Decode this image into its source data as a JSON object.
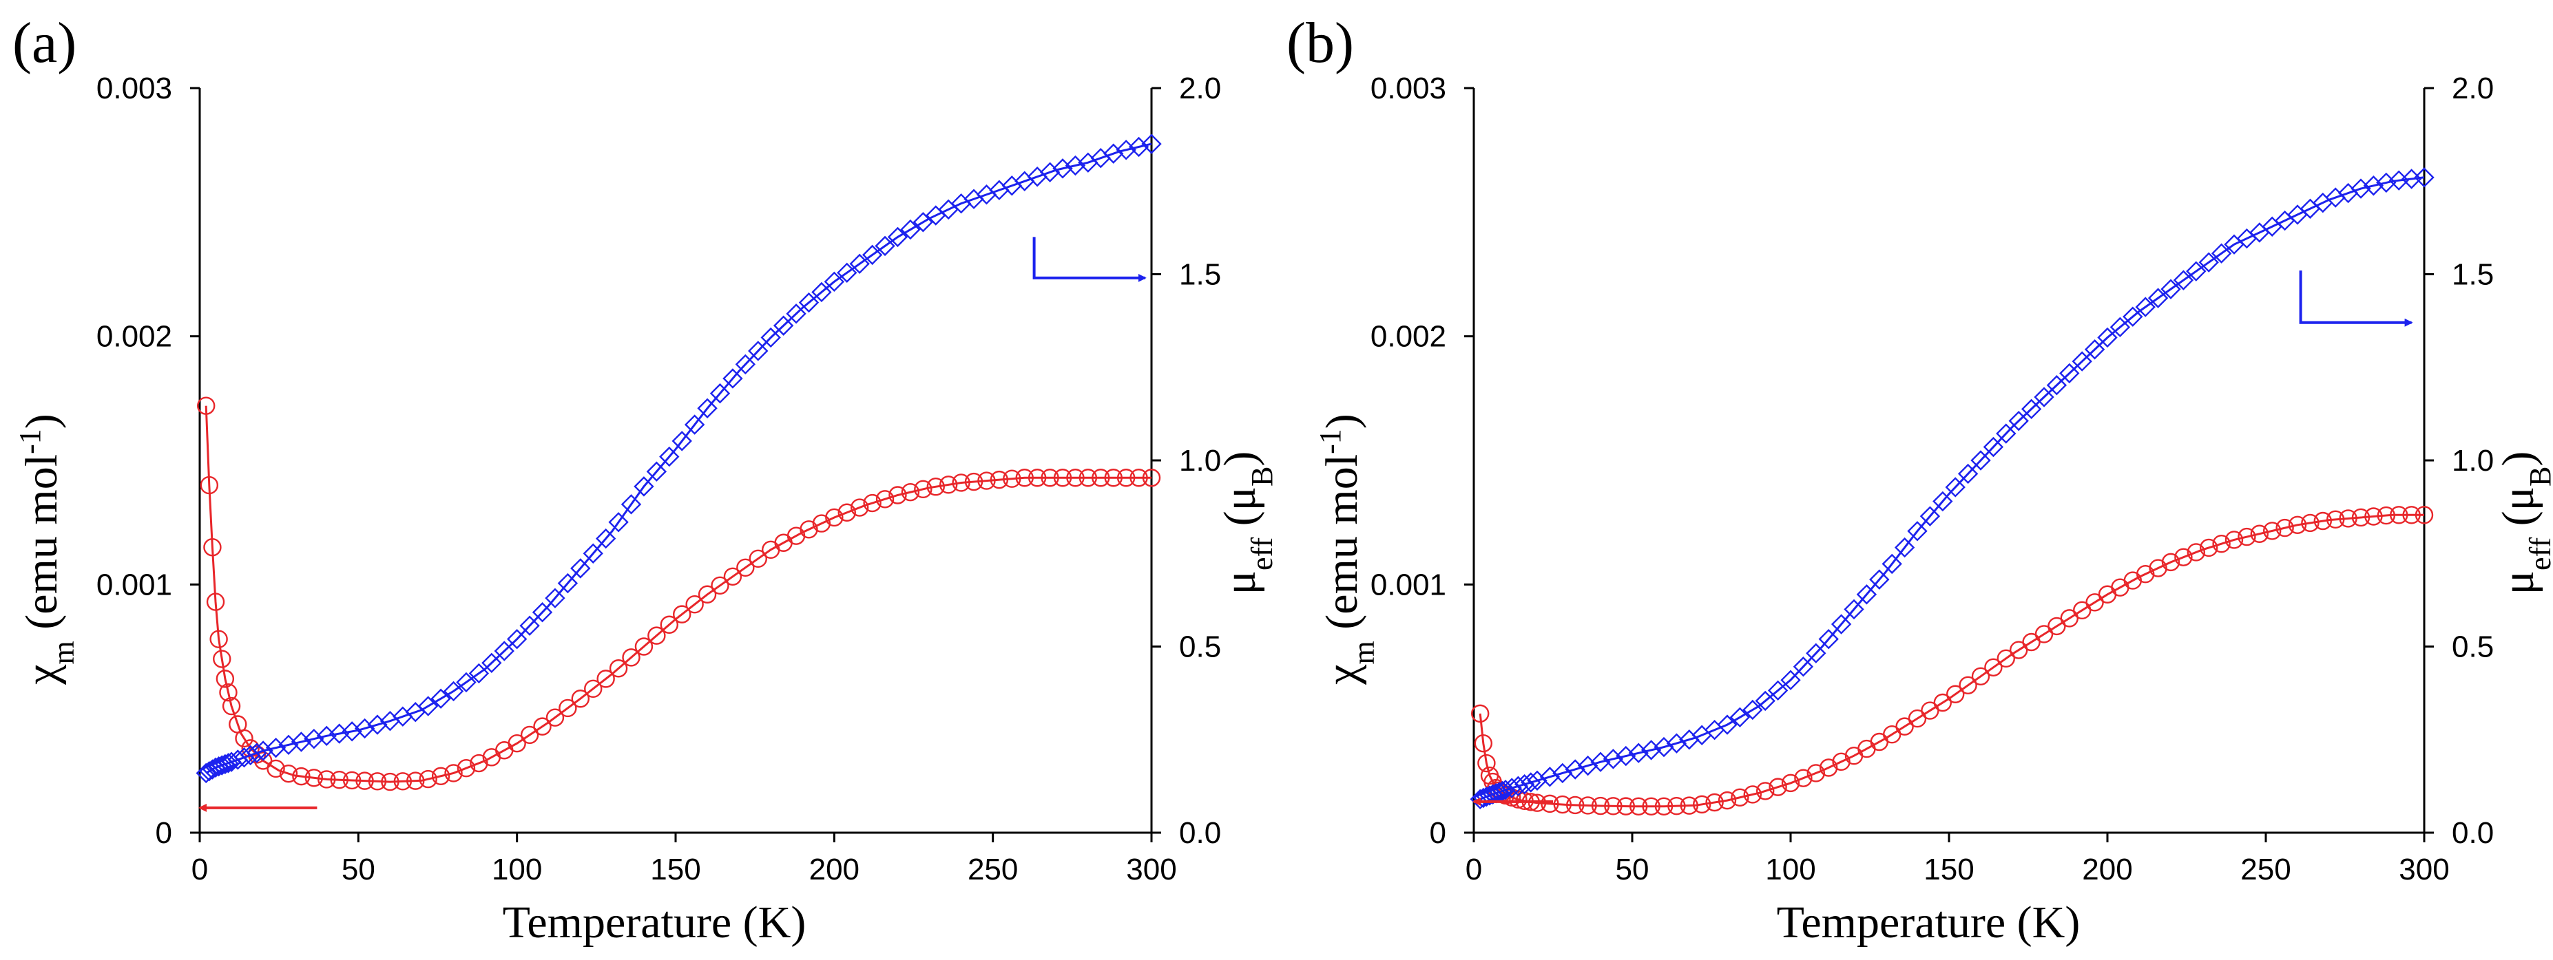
{
  "chart_data": [
    {
      "type": "scatter",
      "panel_label": "(a)",
      "xlabel": "Temperature (K)",
      "ylabel_left": {
        "symbol": "χ",
        "sub": "m",
        "rest": " (emu mol",
        "sup": "-1",
        "close": ")"
      },
      "ylabel_right": {
        "symbol": "μ",
        "sub": "eff",
        "rest": " (μ",
        "sub2": "B",
        "close": ")"
      },
      "xlim": [
        0,
        300
      ],
      "ylim_left": [
        0,
        0.003
      ],
      "ylim_right": [
        0,
        2.0
      ],
      "x_ticks": [
        "0",
        "50",
        "100",
        "150",
        "200",
        "250",
        "300"
      ],
      "y_left_ticks": [
        "0",
        "0.001",
        "0.002",
        "0.003"
      ],
      "y_right_ticks": [
        "0.0",
        "0.5",
        "1.0",
        "1.5",
        "2.0"
      ],
      "series": [
        {
          "name": "chi_m",
          "axis": "left",
          "marker": "circle",
          "color": "#e8262a",
          "fit_points": [
            [
              2,
              0.00172
            ],
            [
              3,
              0.0014
            ],
            [
              4,
              0.00115
            ],
            [
              5,
              0.00093
            ],
            [
              6,
              0.00078
            ],
            [
              8,
              0.00062
            ],
            [
              10,
              0.00051
            ],
            [
              13,
              0.0004
            ],
            [
              16,
              0.00034
            ],
            [
              20,
              0.00029
            ],
            [
              25,
              0.00025
            ],
            [
              30,
              0.00023
            ],
            [
              40,
              0.000215
            ],
            [
              50,
              0.00021
            ],
            [
              60,
              0.000205
            ],
            [
              70,
              0.00021
            ],
            [
              80,
              0.00024
            ],
            [
              90,
              0.00029
            ],
            [
              100,
              0.00036
            ],
            [
              110,
              0.000445
            ],
            [
              120,
              0.00054
            ],
            [
              130,
              0.00064
            ],
            [
              140,
              0.00075
            ],
            [
              150,
              0.00086
            ],
            [
              160,
              0.00096
            ],
            [
              170,
              0.00105
            ],
            [
              180,
              0.00114
            ],
            [
              190,
              0.00121
            ],
            [
              200,
              0.00127
            ],
            [
              210,
              0.00132
            ],
            [
              220,
              0.00136
            ],
            [
              230,
              0.00139
            ],
            [
              240,
              0.00141
            ],
            [
              250,
              0.00142
            ],
            [
              260,
              0.00143
            ],
            [
              270,
              0.00143
            ],
            [
              280,
              0.00143
            ],
            [
              290,
              0.00143
            ],
            [
              300,
              0.00143
            ]
          ]
        },
        {
          "name": "mu_eff",
          "axis": "right",
          "marker": "diamond",
          "color": "#1c22ee",
          "fit_points": [
            [
              2,
              0.16
            ],
            [
              5,
              0.175
            ],
            [
              10,
              0.19
            ],
            [
              20,
              0.22
            ],
            [
              30,
              0.24
            ],
            [
              40,
              0.26
            ],
            [
              50,
              0.275
            ],
            [
              60,
              0.3
            ],
            [
              70,
              0.33
            ],
            [
              80,
              0.38
            ],
            [
              90,
              0.44
            ],
            [
              100,
              0.52
            ],
            [
              110,
              0.61
            ],
            [
              120,
              0.71
            ],
            [
              130,
              0.81
            ],
            [
              140,
              0.93
            ],
            [
              150,
              1.03
            ],
            [
              160,
              1.14
            ],
            [
              170,
              1.24
            ],
            [
              180,
              1.33
            ],
            [
              190,
              1.41
            ],
            [
              200,
              1.48
            ],
            [
              210,
              1.54
            ],
            [
              220,
              1.6
            ],
            [
              230,
              1.65
            ],
            [
              240,
              1.69
            ],
            [
              250,
              1.72
            ],
            [
              260,
              1.75
            ],
            [
              270,
              1.78
            ],
            [
              280,
              1.8
            ],
            [
              290,
              1.83
            ],
            [
              300,
              1.85
            ]
          ]
        }
      ],
      "annotations": [
        {
          "type": "arrow",
          "points": [
            [
              37,
              0.0001
            ],
            [
              0,
              0.0001
            ]
          ],
          "unit": "left",
          "color": "#e8262a"
        },
        {
          "type": "arrow",
          "points": [
            [
              263,
              1.6
            ],
            [
              263,
              1.49
            ],
            [
              298,
              1.49
            ]
          ],
          "unit": "right",
          "color": "#1c22ee"
        }
      ]
    },
    {
      "type": "scatter",
      "panel_label": "(b)",
      "xlabel": "Temperature (K)",
      "ylabel_left": {
        "symbol": "χ",
        "sub": "m",
        "rest": " (emu mol",
        "sup": "-1",
        "close": ")"
      },
      "ylabel_right": {
        "symbol": "μ",
        "sub": "eff",
        "rest": " (μ",
        "sub2": "B",
        "close": ")"
      },
      "xlim": [
        0,
        300
      ],
      "ylim_left": [
        0,
        0.003
      ],
      "ylim_right": [
        0,
        2.0
      ],
      "x_ticks": [
        "0",
        "50",
        "100",
        "150",
        "200",
        "250",
        "300"
      ],
      "y_left_ticks": [
        "0",
        "0.001",
        "0.002",
        "0.003"
      ],
      "y_right_ticks": [
        "0.0",
        "0.5",
        "1.0",
        "1.5",
        "2.0"
      ],
      "series": [
        {
          "name": "chi_m",
          "axis": "left",
          "marker": "circle",
          "color": "#e8262a",
          "fit_points": [
            [
              2,
              0.00048
            ],
            [
              3,
              0.00036
            ],
            [
              4,
              0.00028
            ],
            [
              5,
              0.00023
            ],
            [
              7,
              0.00018
            ],
            [
              10,
              0.00015
            ],
            [
              15,
              0.00013
            ],
            [
              20,
              0.00012
            ],
            [
              30,
              0.000112
            ],
            [
              40,
              0.000108
            ],
            [
              50,
              0.000106
            ],
            [
              60,
              0.000106
            ],
            [
              70,
              0.00011
            ],
            [
              80,
              0.00013
            ],
            [
              90,
              0.00016
            ],
            [
              100,
              0.0002
            ],
            [
              110,
              0.00025
            ],
            [
              120,
              0.00031
            ],
            [
              130,
              0.00038
            ],
            [
              140,
              0.00046
            ],
            [
              150,
              0.00054
            ],
            [
              160,
              0.00063
            ],
            [
              170,
              0.00072
            ],
            [
              180,
              0.0008
            ],
            [
              190,
              0.00088
            ],
            [
              200,
              0.00096
            ],
            [
              210,
              0.00103
            ],
            [
              220,
              0.00109
            ],
            [
              230,
              0.00114
            ],
            [
              240,
              0.00118
            ],
            [
              250,
              0.00121
            ],
            [
              260,
              0.00124
            ],
            [
              270,
              0.00126
            ],
            [
              280,
              0.00127
            ],
            [
              290,
              0.00128
            ],
            [
              300,
              0.00128
            ]
          ]
        },
        {
          "name": "mu_eff",
          "axis": "right",
          "marker": "diamond",
          "color": "#1c22ee",
          "fit_points": [
            [
              2,
              0.09
            ],
            [
              5,
              0.1
            ],
            [
              10,
              0.115
            ],
            [
              20,
              0.14
            ],
            [
              30,
              0.165
            ],
            [
              40,
              0.19
            ],
            [
              50,
              0.21
            ],
            [
              60,
              0.23
            ],
            [
              70,
              0.255
            ],
            [
              80,
              0.29
            ],
            [
              90,
              0.34
            ],
            [
              100,
              0.41
            ],
            [
              110,
              0.5
            ],
            [
              120,
              0.6
            ],
            [
              130,
              0.7
            ],
            [
              140,
              0.81
            ],
            [
              150,
              0.91
            ],
            [
              160,
              1.0
            ],
            [
              170,
              1.09
            ],
            [
              180,
              1.17
            ],
            [
              190,
              1.25
            ],
            [
              200,
              1.33
            ],
            [
              210,
              1.4
            ],
            [
              220,
              1.46
            ],
            [
              230,
              1.52
            ],
            [
              240,
              1.58
            ],
            [
              250,
              1.62
            ],
            [
              260,
              1.66
            ],
            [
              270,
              1.7
            ],
            [
              280,
              1.73
            ],
            [
              290,
              1.75
            ],
            [
              300,
              1.76
            ]
          ]
        }
      ],
      "annotations": [
        {
          "type": "arrow",
          "points": [
            [
              25,
              0.000125
            ],
            [
              0,
              0.000125
            ]
          ],
          "unit": "left",
          "color": "#e8262a"
        },
        {
          "type": "arrow",
          "points": [
            [
              261,
              1.51
            ],
            [
              261,
              1.37
            ],
            [
              296,
              1.37
            ]
          ],
          "unit": "right",
          "color": "#1c22ee"
        }
      ]
    }
  ]
}
